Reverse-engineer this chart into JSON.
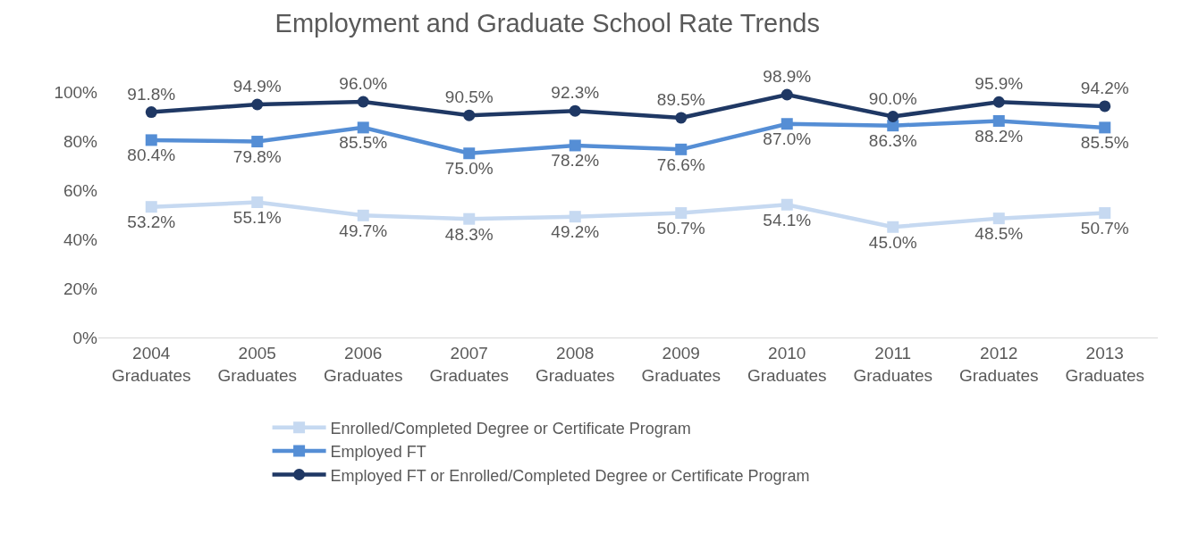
{
  "chart_data": {
    "type": "line",
    "title": "Employment and Graduate School Rate Trends",
    "categories": [
      "2004 Graduates",
      "2005 Graduates",
      "2006 Graduates",
      "2007 Graduates",
      "2008 Graduates",
      "2009 Graduates",
      "2010 Graduates",
      "2011 Graduates",
      "2012 Graduates",
      "2013 Graduates"
    ],
    "series": [
      {
        "name": "Enrolled/Completed Degree or Certificate Program",
        "color": "#c6d9f1",
        "marker": "square",
        "values": [
          53.2,
          55.1,
          49.7,
          48.3,
          49.2,
          50.7,
          54.1,
          45.0,
          48.5,
          50.7
        ],
        "value_labels": [
          "53.2%",
          "55.1%",
          "49.7%",
          "48.3%",
          "49.2%",
          "50.7%",
          "54.1%",
          "45.0%",
          "48.5%",
          "50.7%"
        ]
      },
      {
        "name": "Employed FT",
        "color": "#558ed5",
        "marker": "square",
        "values": [
          80.4,
          79.8,
          85.5,
          75.0,
          78.2,
          76.6,
          87.0,
          86.3,
          88.2,
          85.5
        ],
        "value_labels": [
          "80.4%",
          "79.8%",
          "85.5%",
          "75.0%",
          "78.2%",
          "76.6%",
          "87.0%",
          "86.3%",
          "88.2%",
          "85.5%"
        ]
      },
      {
        "name": "Employed FT or Enrolled/Completed Degree or Certificate Program",
        "color": "#1f3864",
        "marker": "circle",
        "values": [
          91.8,
          94.9,
          96.0,
          90.5,
          92.3,
          89.5,
          98.9,
          90.0,
          95.9,
          94.2
        ],
        "value_labels": [
          "91.8%",
          "94.9%",
          "96.0%",
          "90.5%",
          "92.3%",
          "89.5%",
          "98.9%",
          "90.0%",
          "95.9%",
          "94.2%"
        ]
      }
    ],
    "ylim": [
      0,
      100
    ],
    "yticks": [
      {
        "value": 0,
        "label": "0%"
      },
      {
        "value": 20,
        "label": "20%"
      },
      {
        "value": 40,
        "label": "40%"
      },
      {
        "value": 60,
        "label": "60%"
      },
      {
        "value": 80,
        "label": "80%"
      },
      {
        "value": 100,
        "label": "100%"
      }
    ],
    "grid": false,
    "legend": "bottom",
    "line_style": "solid"
  }
}
